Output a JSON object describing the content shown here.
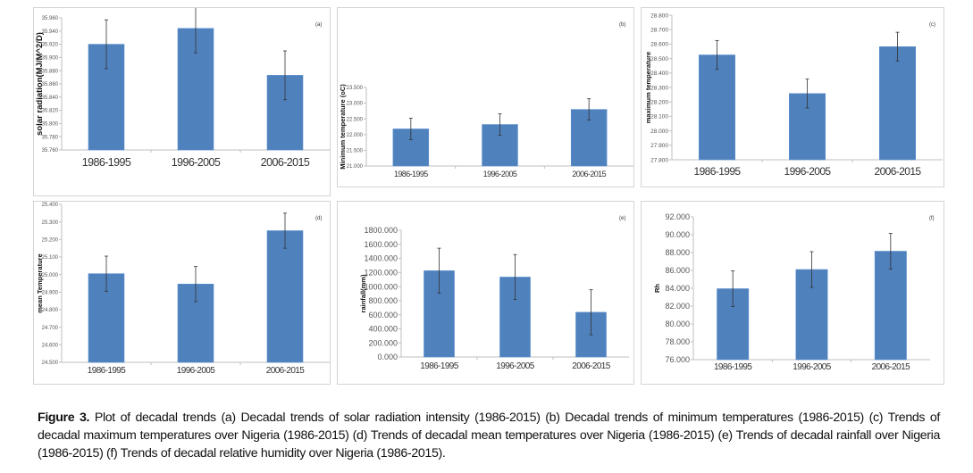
{
  "chart_data": [
    {
      "type": "bar",
      "panel_label": "(a)",
      "ylabel": "solar radiation(MJ/M^2/D)",
      "categories": [
        "1986-1995",
        "1996-2005",
        "2006-2015"
      ],
      "values": [
        35.92,
        35.944,
        35.873
      ],
      "error": [
        0.037,
        0.037,
        0.037
      ],
      "ylim": [
        35.76,
        35.96
      ],
      "ytick_step": 0.02,
      "grid": false,
      "color": "#4f81bd"
    },
    {
      "type": "bar",
      "panel_label": "(b)",
      "ylabel": "Minimum temperature (oC)",
      "categories": [
        "1986-1995",
        "1996-2005",
        "2006-2015"
      ],
      "values": [
        22.18,
        22.32,
        22.8
      ],
      "error": [
        0.34,
        0.34,
        0.34
      ],
      "ylim": [
        21.0,
        23.5
      ],
      "ytick_step": 0.5,
      "grid": false,
      "color": "#4f81bd"
    },
    {
      "type": "bar",
      "panel_label": "(c)",
      "ylabel": "maximum temperature",
      "categories": [
        "1986-1995",
        "1996-2005",
        "2006-2015"
      ],
      "values": [
        28.525,
        28.258,
        28.582
      ],
      "error": [
        0.1,
        0.1,
        0.1
      ],
      "ylim": [
        27.8,
        28.8
      ],
      "ytick_step": 0.1,
      "grid": false,
      "color": "#4f81bd"
    },
    {
      "type": "bar",
      "panel_label": "(d)",
      "ylabel": "mean Temperature",
      "categories": [
        "1986-1995",
        "1996-2005",
        "2006-2015"
      ],
      "values": [
        25.005,
        24.946,
        25.25
      ],
      "error": [
        0.1,
        0.1,
        0.1
      ],
      "ylim": [
        24.5,
        25.4
      ],
      "ytick_step": 0.1,
      "grid": false,
      "color": "#4f81bd"
    },
    {
      "type": "bar",
      "panel_label": "(e)",
      "ylabel": "rainfall(mm)",
      "categories": [
        "1986-1995",
        "1996-2005",
        "2006-2015"
      ],
      "values": [
        1225,
        1135,
        635
      ],
      "error": [
        320,
        320,
        320
      ],
      "ylim": [
        0,
        1800
      ],
      "ytick_step": 200,
      "grid": false,
      "color": "#4f81bd"
    },
    {
      "type": "bar",
      "panel_label": "(f)",
      "ylabel": "Rh",
      "categories": [
        "1986-1995",
        "1996-2005",
        "2006-2015"
      ],
      "values": [
        83.95,
        86.1,
        88.15
      ],
      "error": [
        2,
        2,
        2
      ],
      "ylim": [
        76.0,
        92.0
      ],
      "ytick_step": 2,
      "grid": false,
      "color": "#4f81bd"
    }
  ],
  "caption": {
    "label": "Figure 3.",
    "text": " Plot of decadal trends (a) Decadal trends of solar radiation intensity (1986-2015) (b) Decadal trends of minimum temperatures (1986-2015) (c) Trends of decadal maximum temperatures over Nigeria (1986-2015) (d) Trends of decadal mean temperatures over Nigeria (1986-2015) (e) Trends of decadal rainfall over Nigeria (1986-2015) (f) Trends of decadal relative humidity over Nigeria (1986-2015)."
  }
}
